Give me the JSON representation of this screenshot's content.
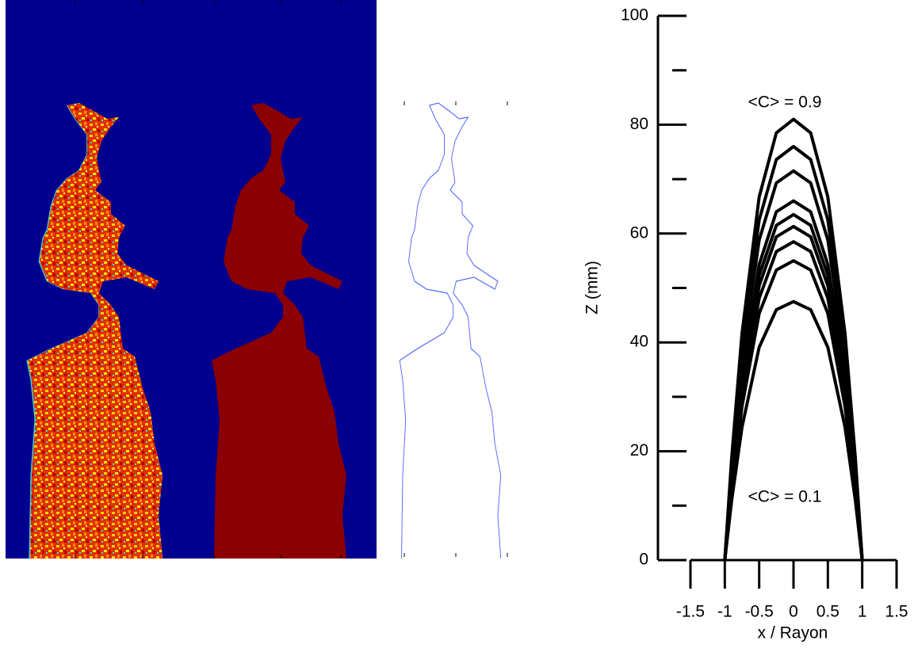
{
  "chart_data": {
    "type": "line",
    "x_label": "x / Rayon",
    "y_label": "Z (mm)",
    "annotations": [
      "<C> = 0.9",
      "<C> = 0.1"
    ],
    "x": [
      -1,
      -0.9,
      -0.75,
      -0.5,
      -0.25,
      0,
      0.25,
      0.5,
      0.75,
      0.9,
      1
    ],
    "color": "#000000",
    "series": [
      {
        "values": [
          0,
          18.8,
          41.6,
          66.7,
          78.5,
          81,
          78.5,
          66.7,
          41.6,
          18.8,
          0
        ]
      },
      {
        "values": [
          0,
          17.6,
          39,
          62.5,
          73.6,
          76,
          73.6,
          62.5,
          39,
          17.6,
          0
        ]
      },
      {
        "values": [
          0,
          16.6,
          36.7,
          58.8,
          69.3,
          71.5,
          69.3,
          58.8,
          36.7,
          16.6,
          0
        ]
      },
      {
        "values": [
          0,
          15.3,
          33.9,
          54.3,
          64,
          66,
          64,
          54.3,
          33.9,
          15.3,
          0
        ]
      },
      {
        "values": [
          0,
          14.7,
          32.6,
          52.3,
          61.5,
          63.5,
          61.5,
          52.3,
          32.6,
          14.7,
          0
        ]
      },
      {
        "values": [
          0,
          14.2,
          31.4,
          50.4,
          59.4,
          61.3,
          59.4,
          50.4,
          31.4,
          14.2,
          0
        ]
      },
      {
        "values": [
          0,
          13.6,
          30,
          48.1,
          56.7,
          58.5,
          56.7,
          48.1,
          30,
          13.6,
          0
        ]
      },
      {
        "values": [
          0,
          12.8,
          28.2,
          45.3,
          53.3,
          55,
          53.3,
          45.3,
          28.2,
          12.8,
          0
        ]
      },
      {
        "values": [
          0,
          11,
          24.4,
          39.1,
          46,
          47.5,
          46,
          39.1,
          24.4,
          11,
          0
        ]
      }
    ],
    "xlim": [
      -1.5,
      1.5
    ],
    "xticks": [
      -1.5,
      -1,
      -0.5,
      0,
      0.5,
      1,
      1.5
    ],
    "ylim": [
      0,
      100
    ],
    "yticks": [
      0,
      20,
      40,
      60,
      80,
      100
    ],
    "minor_yticks": [
      10,
      30,
      50,
      70,
      90
    ]
  }
}
